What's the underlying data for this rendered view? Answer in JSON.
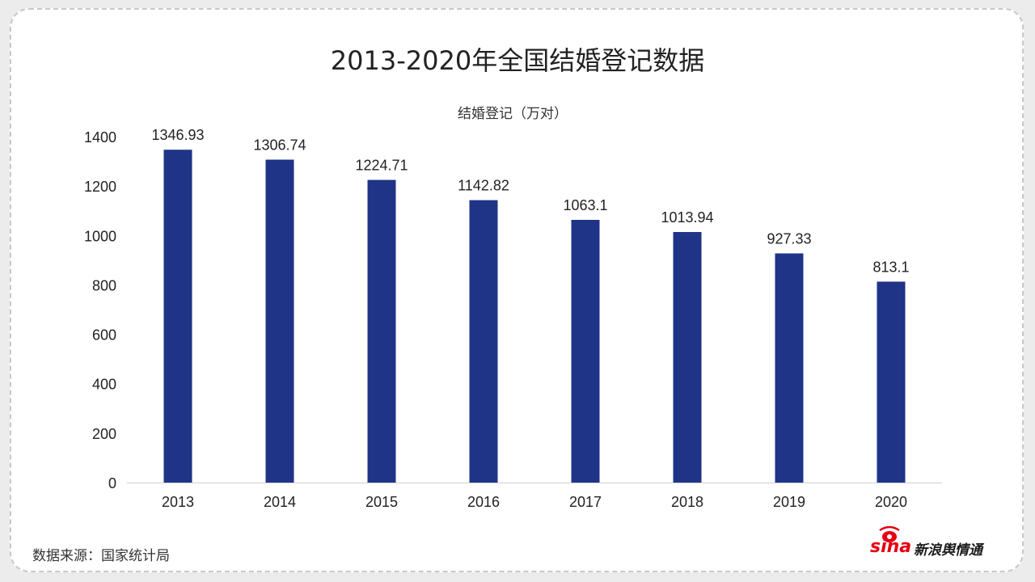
{
  "page": {
    "title": "2013-2020年全国结婚登记数据",
    "source": "数据来源：国家统计局",
    "logo": {
      "brand": "sina",
      "tagline": "新浪舆情通",
      "icon": "sina-eye-icon"
    }
  },
  "chart_data": {
    "type": "bar",
    "title": "2013-2020年全国结婚登记数据",
    "series": [
      {
        "name": "结婚登记（万对）",
        "values": [
          1346.93,
          1306.74,
          1224.71,
          1142.82,
          1063.1,
          1013.94,
          927.33,
          813.1
        ]
      }
    ],
    "categories": [
      "2013",
      "2014",
      "2015",
      "2016",
      "2017",
      "2018",
      "2019",
      "2020"
    ],
    "ylim": [
      0,
      1400
    ],
    "yticks": [
      0,
      200,
      400,
      600,
      800,
      1000,
      1200,
      1400
    ],
    "bar_color": "#1f3387",
    "grid": false,
    "legend": "top-center"
  }
}
